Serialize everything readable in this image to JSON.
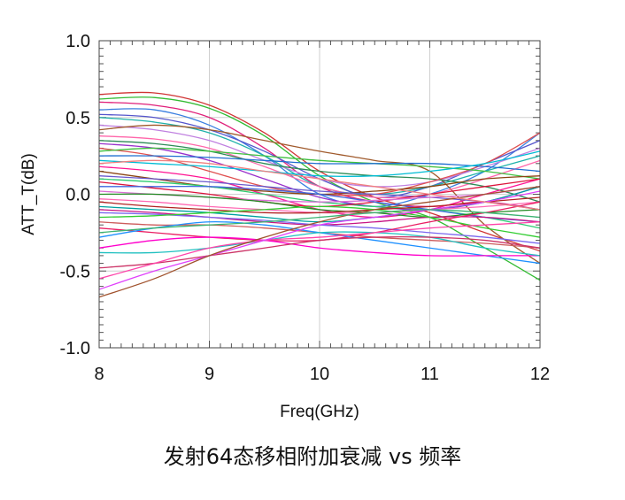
{
  "caption": "发射64态移相附加衰减 vs 频率",
  "chart_data": {
    "type": "line",
    "title": "",
    "xlabel": "Freq(GHz)",
    "ylabel": "ATT_T(dB)",
    "xlim": [
      8,
      12
    ],
    "ylim": [
      -1.0,
      1.0
    ],
    "xticks": [
      "8",
      "9",
      "10",
      "11",
      "12"
    ],
    "yticks": [
      "1.0",
      "0.5",
      "0.0",
      "-0.5",
      "-1.0"
    ],
    "grid": true,
    "legend": "none",
    "x": [
      8,
      8.5,
      9,
      9.5,
      10,
      10.5,
      11,
      11.5,
      12
    ],
    "series": [
      {
        "color": "#d03434",
        "values": [
          0.65,
          0.66,
          0.58,
          0.4,
          0.15,
          -0.02,
          -0.12,
          -0.25,
          -0.37
        ]
      },
      {
        "color": "#33bb33",
        "values": [
          0.62,
          0.63,
          0.56,
          0.38,
          0.12,
          -0.05,
          -0.15,
          -0.35,
          -0.56
        ]
      },
      {
        "color": "#e0207a",
        "values": [
          0.6,
          0.58,
          0.5,
          0.3,
          0.05,
          -0.05,
          -0.08,
          -0.05,
          -0.1
        ]
      },
      {
        "color": "#3a7fe0",
        "values": [
          0.55,
          0.55,
          0.45,
          0.25,
          0.0,
          -0.08,
          0.0,
          0.15,
          0.4
        ]
      },
      {
        "color": "#5555cc",
        "values": [
          0.52,
          0.5,
          0.42,
          0.28,
          0.1,
          -0.02,
          0.05,
          0.2,
          0.35
        ]
      },
      {
        "color": "#20b2aa",
        "values": [
          0.5,
          0.47,
          0.4,
          0.25,
          0.05,
          0.0,
          0.05,
          0.15,
          0.25
        ]
      },
      {
        "color": "#c080e0",
        "values": [
          0.45,
          0.42,
          0.35,
          0.22,
          0.1,
          0.05,
          0.08,
          0.18,
          0.3
        ]
      },
      {
        "color": "#a05a2c",
        "values": [
          0.42,
          0.45,
          0.42,
          0.35,
          0.28,
          0.22,
          0.15,
          -0.2,
          -0.45
        ]
      },
      {
        "color": "#ff66aa",
        "values": [
          0.38,
          0.36,
          0.3,
          0.18,
          0.05,
          -0.02,
          0.0,
          0.1,
          0.22
        ]
      },
      {
        "color": "#2e8b57",
        "values": [
          0.35,
          0.33,
          0.28,
          0.2,
          0.15,
          0.12,
          0.1,
          0.05,
          -0.05
        ]
      },
      {
        "color": "#9932cc",
        "values": [
          0.33,
          0.3,
          0.22,
          0.1,
          -0.02,
          -0.08,
          -0.1,
          -0.05,
          0.05
        ]
      },
      {
        "color": "#e05050",
        "values": [
          0.3,
          0.25,
          0.15,
          0.05,
          0.0,
          0.0,
          0.08,
          0.2,
          0.4
        ]
      },
      {
        "color": "#40c040",
        "values": [
          0.28,
          0.3,
          0.28,
          0.25,
          0.22,
          0.2,
          0.18,
          0.15,
          0.1
        ]
      },
      {
        "color": "#1f6fd0",
        "values": [
          0.25,
          0.25,
          0.24,
          0.22,
          0.2,
          0.2,
          0.2,
          0.18,
          0.15
        ]
      },
      {
        "color": "#00bcd4",
        "values": [
          0.22,
          0.2,
          0.18,
          0.15,
          0.12,
          0.12,
          0.15,
          0.2,
          0.28
        ]
      },
      {
        "color": "#ff1493",
        "values": [
          0.18,
          0.15,
          0.1,
          0.0,
          -0.1,
          -0.15,
          -0.1,
          0.0,
          0.1
        ]
      },
      {
        "color": "#8b4513",
        "values": [
          0.15,
          0.1,
          0.05,
          0.02,
          0.0,
          0.02,
          0.05,
          0.1,
          0.12
        ]
      },
      {
        "color": "#6a5acd",
        "values": [
          0.12,
          0.1,
          0.08,
          0.05,
          0.02,
          0.0,
          -0.02,
          -0.05,
          -0.1
        ]
      },
      {
        "color": "#2ecc71",
        "values": [
          0.1,
          0.08,
          0.05,
          0.0,
          -0.05,
          -0.08,
          -0.1,
          -0.15,
          -0.22
        ]
      },
      {
        "color": "#dc143c",
        "values": [
          0.08,
          0.04,
          0.0,
          -0.05,
          -0.08,
          -0.05,
          0.0,
          0.05,
          0.1
        ]
      },
      {
        "color": "#4169e1",
        "values": [
          0.05,
          0.05,
          0.05,
          0.03,
          0.0,
          -0.05,
          -0.1,
          -0.15,
          -0.18
        ]
      },
      {
        "color": "#da70d6",
        "values": [
          0.02,
          0.0,
          -0.02,
          -0.04,
          -0.05,
          -0.04,
          -0.02,
          0.0,
          0.05
        ]
      },
      {
        "color": "#228b22",
        "values": [
          0.0,
          0.0,
          -0.02,
          -0.05,
          -0.1,
          -0.12,
          -0.15,
          -0.12,
          -0.1
        ]
      },
      {
        "color": "#ff69b4",
        "values": [
          -0.03,
          -0.05,
          -0.08,
          -0.1,
          -0.12,
          -0.12,
          -0.1,
          -0.08,
          -0.05
        ]
      },
      {
        "color": "#b22222",
        "values": [
          -0.05,
          -0.08,
          -0.1,
          -0.12,
          -0.12,
          -0.1,
          -0.08,
          -0.05,
          -0.02
        ]
      },
      {
        "color": "#00a0a0",
        "values": [
          -0.08,
          -0.1,
          -0.12,
          -0.15,
          -0.18,
          -0.15,
          -0.1,
          -0.05,
          0.05
        ]
      },
      {
        "color": "#c71585",
        "values": [
          -0.1,
          -0.12,
          -0.15,
          -0.18,
          -0.2,
          -0.18,
          -0.15,
          -0.15,
          -0.18
        ]
      },
      {
        "color": "#7b68ee",
        "values": [
          -0.12,
          -0.13,
          -0.15,
          -0.17,
          -0.2,
          -0.22,
          -0.25,
          -0.28,
          -0.32
        ]
      },
      {
        "color": "#32cd32",
        "values": [
          -0.15,
          -0.14,
          -0.12,
          -0.1,
          -0.08,
          -0.1,
          -0.15,
          -0.22,
          -0.28
        ]
      },
      {
        "color": "#cd5c5c",
        "values": [
          -0.18,
          -0.2,
          -0.2,
          -0.22,
          -0.25,
          -0.28,
          -0.3,
          -0.32,
          -0.35
        ]
      },
      {
        "color": "#e91e63",
        "values": [
          -0.22,
          -0.25,
          -0.28,
          -0.3,
          -0.3,
          -0.25,
          -0.18,
          -0.12,
          -0.05
        ]
      },
      {
        "color": "#1e90ff",
        "values": [
          -0.28,
          -0.22,
          -0.18,
          -0.2,
          -0.25,
          -0.3,
          -0.35,
          -0.4,
          -0.45
        ]
      },
      {
        "color": "#ff00cc",
        "values": [
          -0.35,
          -0.3,
          -0.28,
          -0.3,
          -0.35,
          -0.38,
          -0.4,
          -0.4,
          -0.4
        ]
      },
      {
        "color": "#20c0c0",
        "values": [
          -0.38,
          -0.38,
          -0.35,
          -0.3,
          -0.25,
          -0.25,
          -0.28,
          -0.35,
          -0.4
        ]
      },
      {
        "color": "#cc3366",
        "values": [
          -0.48,
          -0.45,
          -0.4,
          -0.35,
          -0.3,
          -0.28,
          -0.28,
          -0.3,
          -0.35
        ]
      },
      {
        "color": "#ff44aa",
        "values": [
          -0.55,
          -0.45,
          -0.35,
          -0.3,
          -0.28,
          -0.25,
          -0.22,
          -0.2,
          -0.18
        ]
      },
      {
        "color": "#e040fb",
        "values": [
          -0.62,
          -0.5,
          -0.4,
          -0.3,
          -0.2,
          -0.15,
          -0.1,
          -0.05,
          0.02
        ]
      },
      {
        "color": "#a0522d",
        "values": [
          -0.67,
          -0.55,
          -0.4,
          -0.28,
          -0.18,
          -0.1,
          -0.05,
          0.0,
          0.05
        ]
      },
      {
        "color": "#f08080",
        "values": [
          0.2,
          0.22,
          0.2,
          0.15,
          0.1,
          0.05,
          0.0,
          -0.05,
          -0.1
        ]
      },
      {
        "color": "#3cb371",
        "values": [
          -0.25,
          -0.22,
          -0.2,
          -0.18,
          -0.15,
          -0.12,
          -0.1,
          -0.12,
          -0.15
        ]
      }
    ]
  }
}
